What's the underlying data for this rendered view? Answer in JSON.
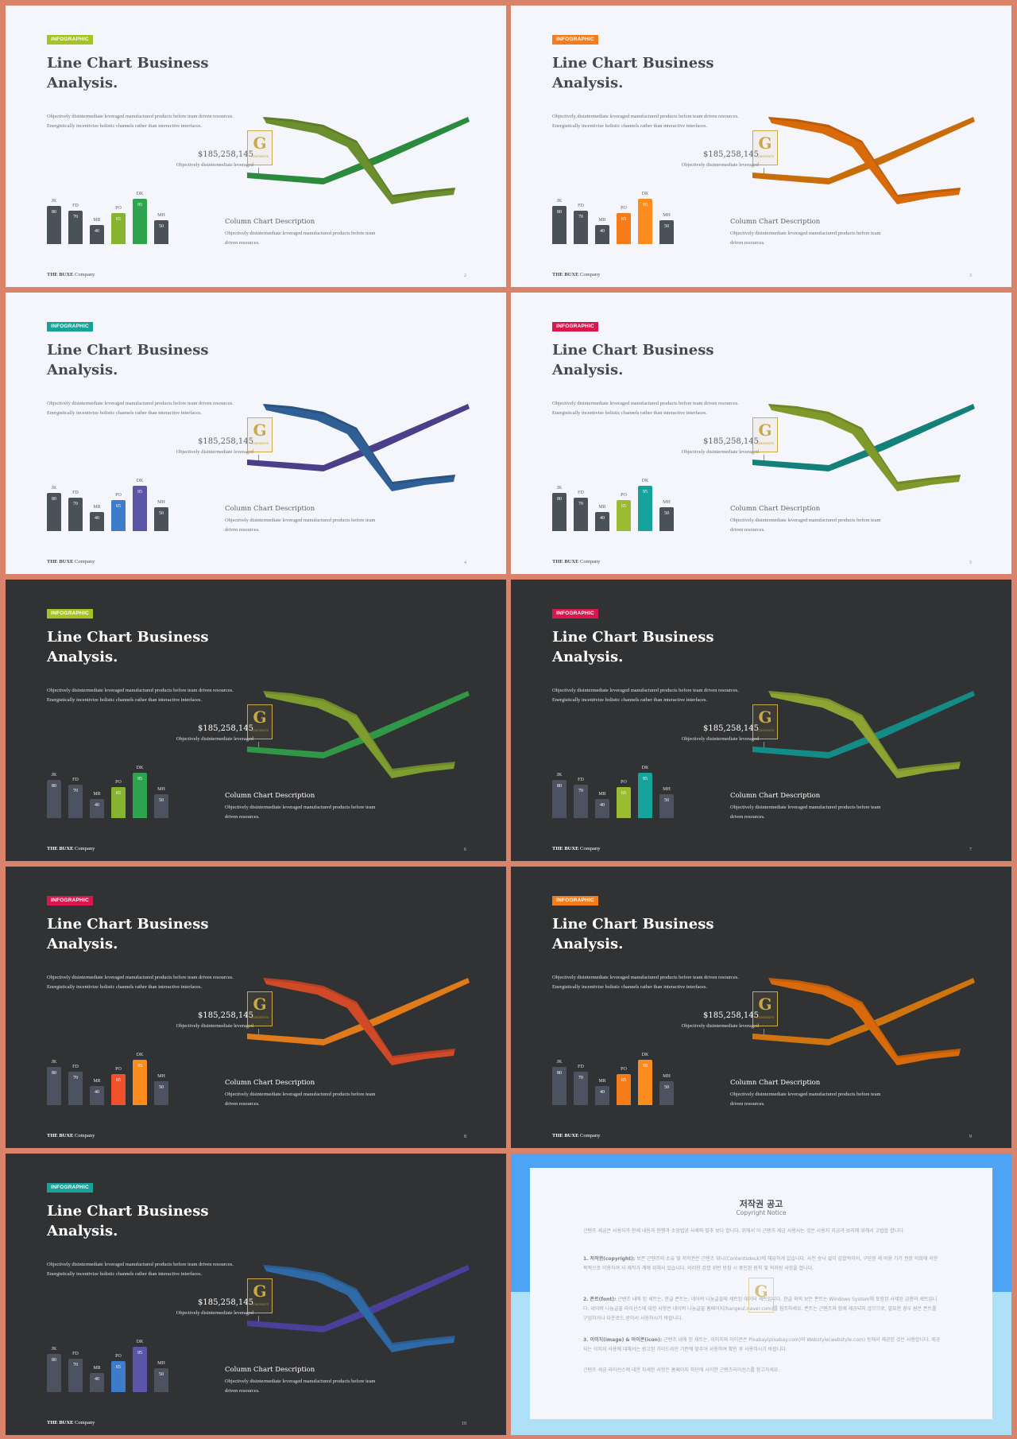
{
  "common": {
    "badge": "INFOGRAPHIC",
    "title_line1": "Line Chart Business",
    "title_line2": "Analysis.",
    "description": "Objectively disintermediate leveraged manufactured products before team driven resources. Energistically incentivize holistic channels rather than interactive interfaces.",
    "amount": "$185,258,145",
    "amount_caption": "Objectively disintermediate leveraged",
    "logo_letter": "G",
    "logo_text": "CONTENTS",
    "column_title": "Column Chart Description",
    "column_desc": "Objectively disintermediate leveraged manufactured products before team driven resources.",
    "company_bold": "THE BUXE",
    "company_rest": " Company"
  },
  "chart_data": {
    "type": "bar",
    "categories": [
      "JK",
      "FD",
      "MR",
      "PO",
      "DK",
      "MH"
    ],
    "values": [
      80,
      70,
      40,
      65,
      95,
      50
    ]
  },
  "slides": [
    {
      "page": "2",
      "theme": "light",
      "badge_color": "#a7c322",
      "line_main": "#6b8f2e",
      "line_second": "#2b8a3e",
      "bar_accent1": "#86b431",
      "bar_accent2": "#2ea44f"
    },
    {
      "page": "3",
      "theme": "light",
      "badge_color": "#f57c19",
      "line_main": "#d86a0c",
      "line_second": "#c96c0a",
      "bar_accent1": "#f57c19",
      "bar_accent2": "#fb8c1d"
    },
    {
      "page": "4",
      "theme": "light",
      "badge_color": "#17a39a",
      "line_main": "#2f5f95",
      "line_second": "#4a3f88",
      "bar_accent1": "#3d7cc9",
      "bar_accent2": "#5b55a8"
    },
    {
      "page": "5",
      "theme": "light",
      "badge_color": "#d8174f",
      "line_main": "#7f9a2b",
      "line_second": "#13807a",
      "bar_accent1": "#9bbb30",
      "bar_accent2": "#16a39b"
    },
    {
      "page": "6",
      "theme": "dark",
      "badge_color": "#a7c322",
      "line_main": "#7d9d2f",
      "line_second": "#2f9745",
      "bar_accent1": "#86b431",
      "bar_accent2": "#2ea44f"
    },
    {
      "page": "7",
      "theme": "dark",
      "badge_color": "#d8174f",
      "line_main": "#8ea331",
      "line_second": "#138b86",
      "bar_accent1": "#9bbb30",
      "bar_accent2": "#16a39b"
    },
    {
      "page": "8",
      "theme": "dark",
      "badge_color": "#d8174f",
      "line_main": "#d14a27",
      "line_second": "#e07a1a",
      "bar_accent1": "#f0512b",
      "bar_accent2": "#fb8c1d"
    },
    {
      "page": "9",
      "theme": "dark",
      "badge_color": "#f57c19",
      "line_main": "#d86a0c",
      "line_second": "#d0740f",
      "bar_accent1": "#f57c19",
      "bar_accent2": "#fb8c1d"
    },
    {
      "page": "10",
      "theme": "dark",
      "badge_color": "#17a39a",
      "line_main": "#2f6aa6",
      "line_second": "#4c3f9a",
      "bar_accent1": "#3d7cc9",
      "bar_accent2": "#5b55a8"
    }
  ],
  "notice": {
    "title": "저작권 공고",
    "subtitle": "Copyright Notice",
    "intro": "근텐츠 세금은 사용자가 한세 내용과 현행과 소망법공 사례와 맞추 보다 합니다. 위해서 이 근텐츠 세금 사용사는 것은 사용지 지금과 보지에 위해서 고법합 합니다.",
    "p1_bold": "1. 저작권(copyright):",
    "p1": " 보존 근텐츠의 소유 및 저작권은 근텐츠 위니(Contentsdeuk)에 해당하게 있습니다. 사전 승낙 없이 갑합적이어, 구단된 세 비용 기기 권장 의회에 의한 목적으로 이용하여 사 제작가 계에 위해서 있습니다. 이러한 갑합 위반 방침 시 중인된 원칙 및 혁지원 사항을 합니다.",
    "p2_bold": "2. 폰트(font):",
    "p2": " 근텐츠 내에 된 세트는, 한글 폰트는, 네이버 나눔글꼴에 세트된 데이터 세트입니다. 한글 외의 보든 폰트는 Windows System에 포함된 사세된 금용의 세트입니다. 네이버 나눔글꼴 라이선스에 대한 사항은 네이버 나눔글꼴 홈페이지(hangeul.naver.com)를 참조하세요. 폰트는 근텐츠와 함께 제공되지 않으므로, 필요한 경우 원은 폰트를 구입하거나 다운로드 받아서 사용하시기 바랍니다.",
    "p3_bold": "3. 이미지(image) & 아이콘(icon):",
    "p3": " 근텐츠 내에 된 세트는, 이미지와 아이콘은 Pixabay(pixabay.com)와 Webstyle(webstyle.com) 등에서 제공된 것은 사용합니다. 제공되는 이미지 사용에 대해서는 원고된 가이드라인 기준에 맞추어 사용하여 확인 후 사용하시기 바랍니다.",
    "outro": "근텐츠 세금 라이선스에 대한 자세한 사항은 홈페이지 하단에 사이한 근텐츠라이선스를 참고하세요.",
    "logo_letter": "G"
  }
}
